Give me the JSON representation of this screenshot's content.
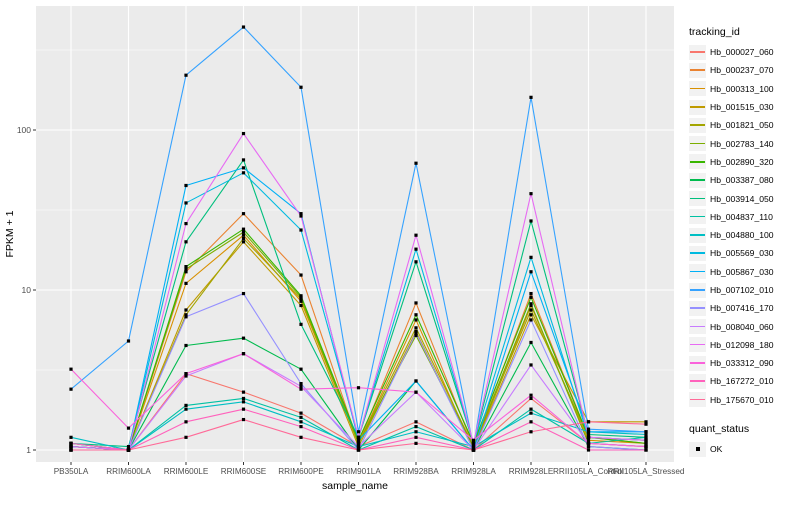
{
  "chart_data": {
    "type": "line",
    "title": "",
    "xlabel": "sample_name",
    "ylabel": "FPKM + 1",
    "y_scale": "log10",
    "y_ticks": [
      1,
      10,
      100
    ],
    "y_tick_labels": [
      "1",
      "10",
      "100"
    ],
    "ylim": [
      0.85,
      600
    ],
    "grid": "on",
    "panel_bg": "#EBEBEB",
    "grid_color": "#FFFFFF",
    "point_shape": "filled-black-square",
    "point_color": "#000000",
    "legend_position": "right",
    "categories": [
      "PB350LA",
      "RRIM600LA",
      "RRIM600LE",
      "RRIM600SE",
      "RRIM600PE",
      "RRIM901LA",
      "RRIM928BA",
      "RRIM928LA",
      "RRIM928LE",
      "RRII105LA_Control",
      "RRII105LA_Stressed"
    ],
    "series": [
      {
        "name": "Hb_000027_060",
        "color": "#F8766D",
        "values": [
          1.1,
          1.0,
          3.0,
          2.3,
          1.7,
          1.05,
          1.5,
          1.0,
          2.1,
          1.1,
          1.05
        ]
      },
      {
        "name": "Hb_000237_070",
        "color": "#EA8331",
        "values": [
          1.0,
          1.0,
          13,
          30,
          12.4,
          1.1,
          8.3,
          1.05,
          9.5,
          1.2,
          1.1
        ]
      },
      {
        "name": "Hb_000313_100",
        "color": "#D89000",
        "values": [
          1.05,
          1.0,
          11,
          22,
          8.5,
          1.1,
          6.5,
          1.0,
          8.0,
          1.15,
          1.1
        ]
      },
      {
        "name": "Hb_001515_030",
        "color": "#C09B00",
        "values": [
          1.0,
          1.0,
          7.5,
          20,
          8.0,
          1.05,
          5.5,
          1.0,
          7.0,
          1.5,
          1.5
        ]
      },
      {
        "name": "Hb_001821_050",
        "color": "#A3A500",
        "values": [
          1.05,
          1.0,
          7.0,
          21,
          8.8,
          1.1,
          5.8,
          1.05,
          7.5,
          1.2,
          1.15
        ]
      },
      {
        "name": "Hb_002783_140",
        "color": "#7CAE00",
        "values": [
          1.1,
          1.0,
          13.5,
          23,
          9.0,
          1.1,
          5.2,
          1.05,
          8.2,
          1.1,
          1.05
        ]
      },
      {
        "name": "Hb_002890_320",
        "color": "#39B600",
        "values": [
          1.0,
          1.0,
          14,
          24,
          9.2,
          1.15,
          7.0,
          1.1,
          9.0,
          1.2,
          1.1
        ]
      },
      {
        "name": "Hb_003387_080",
        "color": "#00BB4E",
        "values": [
          1.05,
          1.0,
          4.5,
          5.0,
          3.2,
          1.0,
          2.7,
          1.0,
          4.7,
          1.05,
          1.0
        ]
      },
      {
        "name": "Hb_003914_050",
        "color": "#00BF7D",
        "values": [
          1.1,
          1.05,
          20,
          65,
          6.1,
          1.2,
          15,
          1.1,
          27,
          1.25,
          1.2
        ]
      },
      {
        "name": "Hb_004837_110",
        "color": "#00C1A3",
        "values": [
          1.05,
          1.0,
          1.9,
          2.1,
          1.6,
          1.0,
          1.4,
          1.0,
          1.8,
          1.1,
          1.2
        ]
      },
      {
        "name": "Hb_004880_100",
        "color": "#00BFC4",
        "values": [
          1.2,
          1.0,
          1.8,
          2.0,
          1.5,
          1.05,
          1.3,
          1.05,
          1.7,
          1.3,
          1.25
        ]
      },
      {
        "name": "Hb_005569_030",
        "color": "#00BAE0",
        "values": [
          1.1,
          1.0,
          35,
          54,
          23.7,
          1.2,
          18,
          1.1,
          16,
          1.2,
          1.15
        ]
      },
      {
        "name": "Hb_005867_030",
        "color": "#00B0F6",
        "values": [
          1.05,
          1.0,
          45,
          58,
          30,
          1.15,
          2.7,
          1.0,
          13,
          1.3,
          1.3
        ]
      },
      {
        "name": "Hb_007102_010",
        "color": "#35A2FF",
        "values": [
          2.4,
          4.8,
          220,
          440,
          185,
          1.3,
          62,
          1.05,
          160,
          1.35,
          1.3
        ]
      },
      {
        "name": "Hb_007416_170",
        "color": "#9590FF",
        "values": [
          1.0,
          1.0,
          6.8,
          9.5,
          2.6,
          1.0,
          5.4,
          1.0,
          6.5,
          1.05,
          1.0
        ]
      },
      {
        "name": "Hb_008040_060",
        "color": "#C77CFF",
        "values": [
          1.0,
          1.0,
          2.9,
          4.0,
          2.5,
          1.05,
          2.3,
          1.0,
          3.4,
          1.1,
          1.05
        ]
      },
      {
        "name": "Hb_012098_180",
        "color": "#E76BF3",
        "values": [
          1.05,
          1.0,
          26,
          95,
          29,
          1.2,
          22,
          1.1,
          40,
          1.2,
          1.15
        ]
      },
      {
        "name": "Hb_033312_090",
        "color": "#FA62DB",
        "values": [
          3.2,
          1.37,
          3.0,
          4.0,
          2.4,
          2.45,
          2.3,
          1.15,
          2.2,
          1.1,
          1.05
        ]
      },
      {
        "name": "Hb_167272_010",
        "color": "#FF62BC",
        "values": [
          1.1,
          1.0,
          1.5,
          1.8,
          1.4,
          1.0,
          1.2,
          1.0,
          1.5,
          1.0,
          1.0
        ]
      },
      {
        "name": "Hb_175670_010",
        "color": "#FF6A98",
        "values": [
          1.0,
          1.0,
          1.2,
          1.55,
          1.2,
          1.0,
          1.1,
          1.0,
          1.3,
          1.5,
          1.45
        ]
      }
    ]
  },
  "legend": {
    "tracking_title": "tracking_id",
    "quant_title": "quant_status",
    "quant_items": [
      {
        "label": "OK"
      }
    ]
  },
  "axis_text_color": "#4D4D4D",
  "tick_color": "#333333"
}
